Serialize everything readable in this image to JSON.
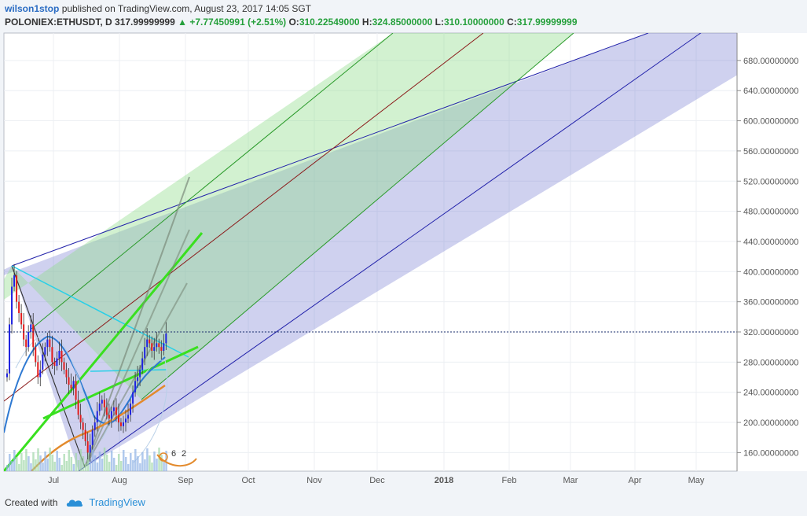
{
  "header": {
    "publisher": "wilson1stop",
    "published_text": "published on TradingView.com, August 23, 2017 14:05 SGT",
    "symbol": "POLONIEX:ETHUSDT, D",
    "last": "317.99999999",
    "change_arrow": "▲",
    "change": "+7.77450991 (+2.51%)",
    "o_label": "O:",
    "o_value": "310.22549000",
    "h_label": "H:",
    "h_value": "324.85000000",
    "l_label": "L:",
    "l_value": "310.10000000",
    "c_label": "C:",
    "c_value": "317.99999999"
  },
  "footer": {
    "created_with": "Created with",
    "brand": "TradingView",
    "logo_icon": "tradingview-cloud-icon"
  },
  "chart_data": {
    "type": "candlestick",
    "symbol": "POLONIEX:ETHUSDT",
    "interval": "D",
    "ylim": [
      140,
      700
    ],
    "y_ticks": [
      "160.00000000",
      "200.00000000",
      "240.00000000",
      "280.00000000",
      "320.00000000",
      "360.00000000",
      "400.00000000",
      "440.00000000",
      "480.00000000",
      "520.00000000",
      "560.00000000",
      "600.00000000",
      "640.00000000",
      "680.00000000"
    ],
    "x_ticks": [
      "Jul",
      "Aug",
      "Sep",
      "Oct",
      "Nov",
      "Dec",
      "2018",
      "Feb",
      "Mar",
      "Apr",
      "May"
    ],
    "last_price_line": 318,
    "candles_close": [
      265,
      330,
      380,
      395,
      360,
      345,
      330,
      310,
      300,
      320,
      330,
      300,
      280,
      260,
      270,
      290,
      300,
      310,
      300,
      280,
      275,
      285,
      295,
      280,
      270,
      260,
      250,
      245,
      255,
      230,
      210,
      200,
      190,
      175,
      160,
      170,
      190,
      200,
      215,
      225,
      230,
      220,
      210,
      205,
      215,
      220,
      210,
      200,
      195,
      200,
      205,
      210,
      225,
      240,
      255,
      260,
      270,
      285,
      300,
      310,
      305,
      295,
      300,
      305,
      300,
      295,
      305,
      318
    ],
    "indicator_labels": [
      "6",
      "2"
    ],
    "colors": {
      "up_candle": "#1f22e0",
      "down_candle": "#e31b1b",
      "outer_channel": "#8e8fe0",
      "inner_channel": "#9fe09a",
      "median_line": "#8b1a1a",
      "trend_green": "#39e01f",
      "cyan_line": "#28d0e8",
      "ma_blue": "#2e79d2",
      "ma_orange": "#e38a2c"
    }
  }
}
